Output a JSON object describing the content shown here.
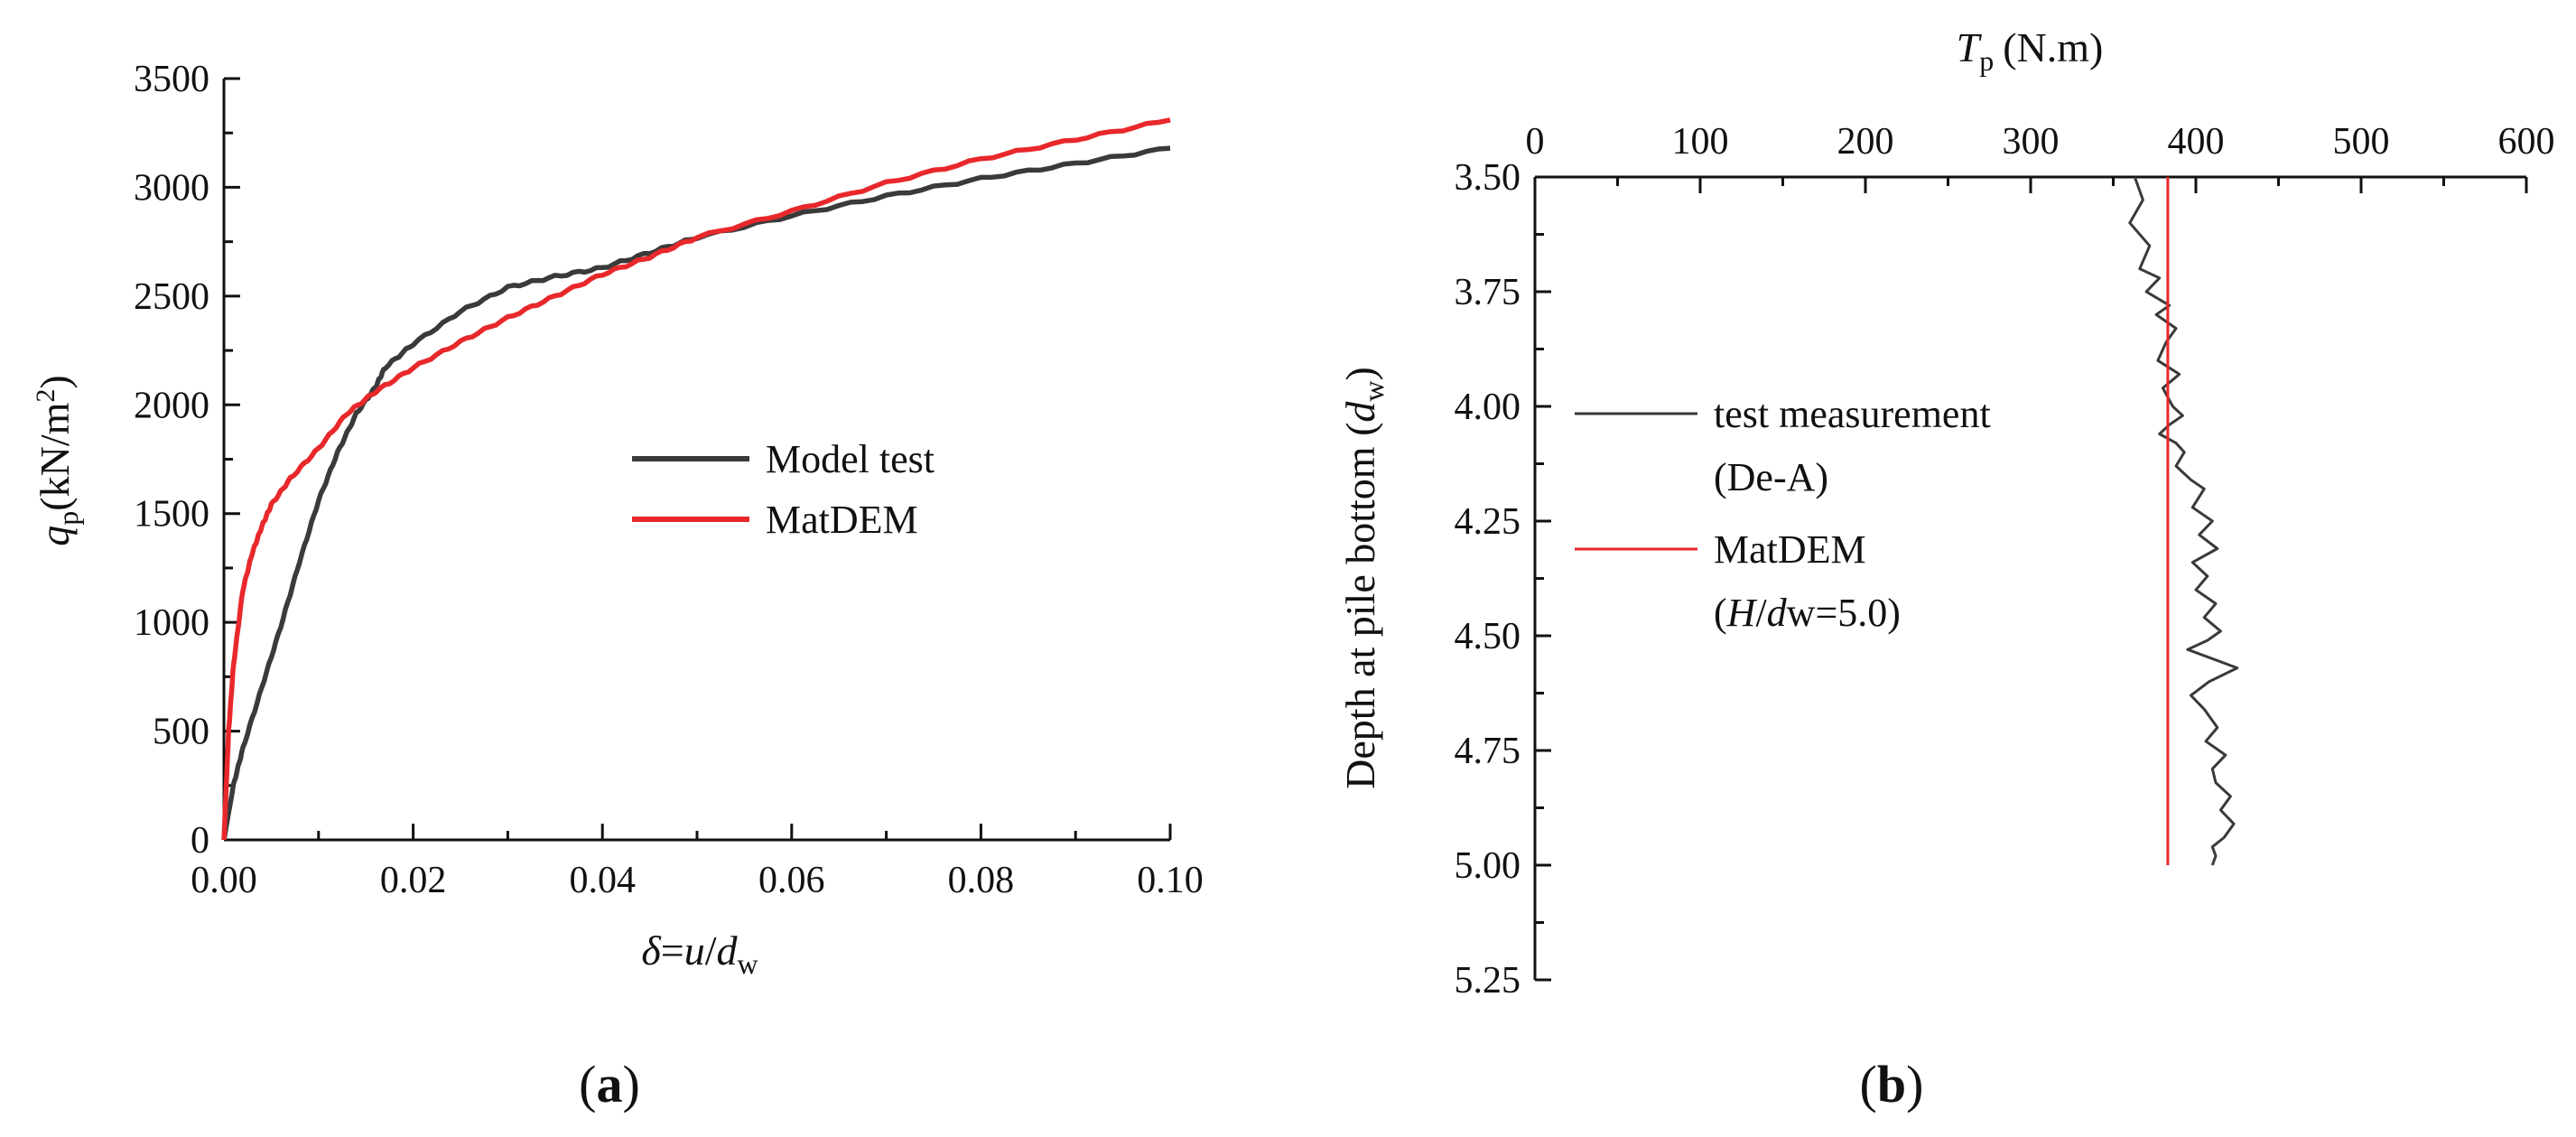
{
  "chart_data": [
    {
      "type": "line",
      "panel_label": "a",
      "xlabel": {
        "var": "δ",
        "eq": "=",
        "num": "u",
        "den": "d",
        "sub": "w"
      },
      "ylabel": {
        "var": "q",
        "sub": "p",
        "unit_prefix": "(kN/m",
        "sup": "2",
        "unit_suffix": ")"
      },
      "xlim": [
        0,
        0.1
      ],
      "ylim": [
        0,
        3500
      ],
      "x_ticks": [
        "0.00",
        "0.02",
        "0.04",
        "0.06",
        "0.08",
        "0.10"
      ],
      "y_ticks": [
        "0",
        "500",
        "1000",
        "1500",
        "2000",
        "2500",
        "3000",
        "3500"
      ],
      "legend_position": "center-right",
      "series": [
        {
          "name": "Model test",
          "color": "#3a3a3a",
          "x": [
            0,
            0.001,
            0.002,
            0.004,
            0.006,
            0.008,
            0.01,
            0.012,
            0.014,
            0.016,
            0.017,
            0.02,
            0.025,
            0.03,
            0.035,
            0.04,
            0.045,
            0.05,
            0.06,
            0.07,
            0.08,
            0.09,
            0.1
          ],
          "y": [
            0,
            250,
            420,
            700,
            980,
            1280,
            1560,
            1780,
            1960,
            2080,
            2170,
            2280,
            2430,
            2540,
            2590,
            2630,
            2700,
            2770,
            2870,
            2960,
            3040,
            3110,
            3180
          ]
        },
        {
          "name": "MatDEM",
          "color": "#e8282b",
          "x": [
            0,
            0.0005,
            0.001,
            0.002,
            0.003,
            0.004,
            0.005,
            0.007,
            0.01,
            0.013,
            0.016,
            0.02,
            0.025,
            0.03,
            0.035,
            0.04,
            0.045,
            0.05,
            0.06,
            0.07,
            0.08,
            0.09,
            0.1
          ],
          "y": [
            0,
            500,
            800,
            1150,
            1320,
            1440,
            1540,
            1660,
            1800,
            1960,
            2060,
            2170,
            2290,
            2400,
            2500,
            2600,
            2680,
            2770,
            2890,
            3020,
            3130,
            3220,
            3310
          ]
        }
      ]
    },
    {
      "type": "line",
      "panel_label": "b",
      "xlabel": {
        "var": "T",
        "sub": "p",
        "unit": "(N.m)"
      },
      "ylabel": {
        "prefix": "Depth at pile bottom (",
        "var": "d",
        "sub": "w",
        "suffix": ")"
      },
      "x_axis_position": "top",
      "y_inverted": true,
      "xlim": [
        0,
        600
      ],
      "ylim": [
        3.5,
        5.25
      ],
      "x_ticks": [
        "0",
        "100",
        "200",
        "300",
        "400",
        "500",
        "600"
      ],
      "y_ticks": [
        "3.50",
        "3.75",
        "4.00",
        "4.25",
        "4.50",
        "4.75",
        "5.00",
        "5.25"
      ],
      "legend_position": "left",
      "series": [
        {
          "name": "test measurement",
          "name_line2": "(De-A)",
          "color": "#3a3a3a",
          "x": [
            363,
            368,
            360,
            372,
            366,
            378,
            370,
            384,
            376,
            388,
            382,
            377,
            390,
            380,
            386,
            392,
            384,
            378,
            388,
            393,
            388,
            397,
            405,
            398,
            410,
            402,
            413,
            398,
            407,
            400,
            412,
            405,
            415,
            407,
            395,
            425,
            408,
            397,
            405,
            413,
            406,
            418,
            410,
            412,
            421,
            415,
            423,
            417,
            410,
            412,
            410
          ],
          "y": [
            3.5,
            3.55,
            3.6,
            3.65,
            3.7,
            3.72,
            3.75,
            3.78,
            3.8,
            3.83,
            3.86,
            3.9,
            3.93,
            3.96,
            4.0,
            4.02,
            4.04,
            4.06,
            4.08,
            4.1,
            4.13,
            4.16,
            4.18,
            4.22,
            4.25,
            4.28,
            4.31,
            4.34,
            4.37,
            4.4,
            4.43,
            4.46,
            4.49,
            4.51,
            4.53,
            4.57,
            4.6,
            4.63,
            4.66,
            4.7,
            4.73,
            4.76,
            4.79,
            4.82,
            4.85,
            4.88,
            4.91,
            4.94,
            4.96,
            4.98,
            5.0
          ]
        },
        {
          "name": "MatDEM",
          "name_line2": {
            "var": "H",
            "slash": "/",
            "rest": "dw=5.0"
          },
          "color": "#e8282b",
          "x": [
            383,
            383
          ],
          "y": [
            3.5,
            5.0
          ]
        }
      ]
    }
  ]
}
